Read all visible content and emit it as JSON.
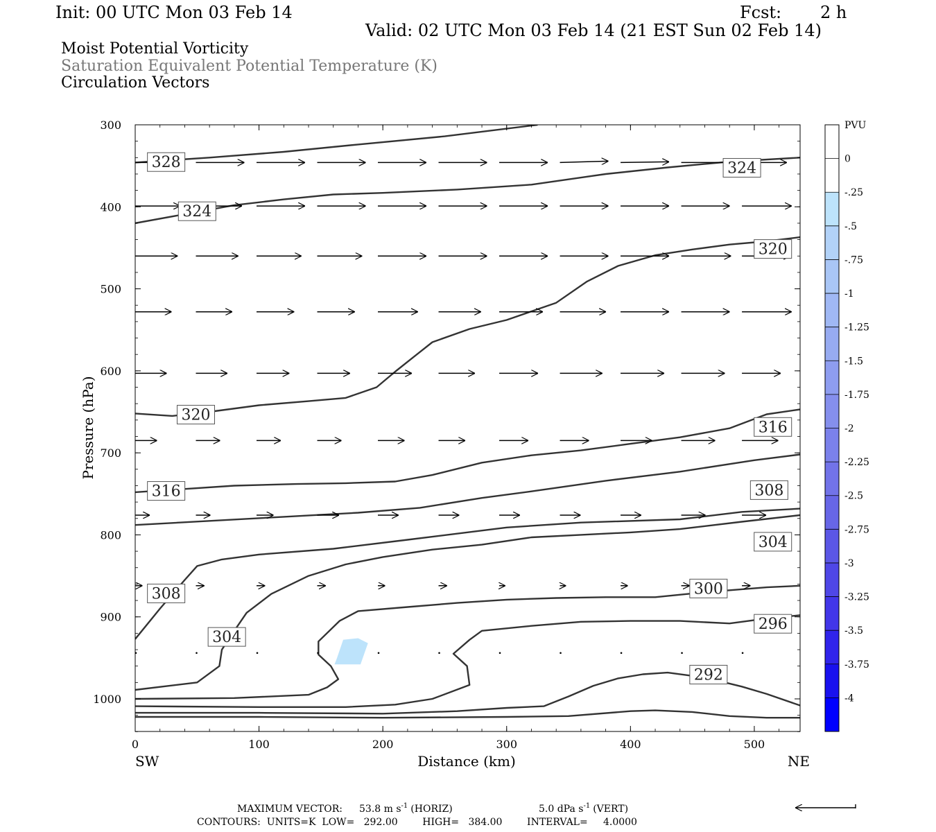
{
  "header": {
    "init": "Init: 00 UTC Mon 03 Feb 14",
    "fcst_label": "Fcst:",
    "fcst_value": "2 h",
    "valid": "Valid: 02 UTC Mon 03 Feb 14 (21 EST Sun 02 Feb 14)",
    "field1": "Moist Potential Vorticity",
    "field2": "Saturation Equivalent Potential Temperature (K)",
    "field3": "Circulation Vectors"
  },
  "colors": {
    "field2_text": "#777777",
    "contour": "#333333",
    "pv_fill": "#bde3fb"
  },
  "chart_data": {
    "type": "cross-section",
    "xlabel": "Distance (km)",
    "ylabel": "Pressure (hPa)",
    "xlim": [
      0,
      537
    ],
    "ylim": [
      1040,
      300
    ],
    "x_ticks": [
      "0",
      "100",
      "200",
      "300",
      "400",
      "500"
    ],
    "y_ticks": [
      "300",
      "400",
      "500",
      "600",
      "700",
      "800",
      "900",
      "1000"
    ],
    "left_end": "SW",
    "right_end": "NE",
    "contours": [
      {
        "level": "328",
        "points": [
          [
            0,
            346
          ],
          [
            60,
            340
          ],
          [
            120,
            333
          ],
          [
            180,
            324
          ],
          [
            250,
            314
          ],
          [
            325,
            300
          ]
        ]
      },
      {
        "level": "324",
        "points": [
          [
            0,
            420
          ],
          [
            40,
            409
          ],
          [
            80,
            398
          ],
          [
            120,
            391
          ],
          [
            160,
            385
          ],
          [
            200,
            383
          ],
          [
            260,
            379
          ],
          [
            320,
            373
          ],
          [
            380,
            360
          ],
          [
            430,
            352
          ],
          [
            480,
            345
          ],
          [
            537,
            340
          ]
        ]
      },
      {
        "level": "320",
        "points": [
          [
            0,
            652
          ],
          [
            30,
            655
          ],
          [
            60,
            650
          ],
          [
            100,
            642
          ],
          [
            140,
            637
          ],
          [
            170,
            633
          ],
          [
            195,
            620
          ],
          [
            210,
            601
          ],
          [
            225,
            583
          ],
          [
            240,
            565
          ],
          [
            270,
            549
          ],
          [
            300,
            538
          ],
          [
            340,
            517
          ],
          [
            365,
            491
          ],
          [
            390,
            472
          ],
          [
            420,
            459
          ],
          [
            450,
            452
          ],
          [
            480,
            446
          ],
          [
            510,
            442
          ],
          [
            537,
            437
          ]
        ]
      },
      {
        "level": "316",
        "points": [
          [
            0,
            748
          ],
          [
            80,
            740
          ],
          [
            130,
            738
          ],
          [
            170,
            737
          ],
          [
            210,
            735
          ],
          [
            240,
            727
          ],
          [
            280,
            712
          ],
          [
            320,
            703
          ],
          [
            360,
            697
          ],
          [
            400,
            689
          ],
          [
            440,
            681
          ],
          [
            480,
            670
          ],
          [
            510,
            653
          ],
          [
            537,
            647
          ]
        ]
      },
      {
        "level": "308",
        "points": [
          [
            0,
            788
          ],
          [
            60,
            783
          ],
          [
            120,
            778
          ],
          [
            180,
            773
          ],
          [
            230,
            767
          ],
          [
            280,
            755
          ],
          [
            320,
            747
          ],
          [
            380,
            734
          ],
          [
            440,
            723
          ],
          [
            500,
            709
          ],
          [
            537,
            702
          ]
        ]
      },
      {
        "level": "308",
        "points": [
          [
            0,
            927
          ],
          [
            20,
            890
          ],
          [
            40,
            855
          ],
          [
            50,
            838
          ],
          [
            70,
            830
          ],
          [
            100,
            824
          ],
          [
            160,
            817
          ],
          [
            220,
            806
          ],
          [
            300,
            791
          ],
          [
            360,
            785
          ],
          [
            440,
            781
          ],
          [
            490,
            772
          ],
          [
            537,
            768
          ]
        ]
      },
      {
        "level": "304",
        "points": [
          [
            0,
            989
          ],
          [
            50,
            980
          ],
          [
            68,
            960
          ],
          [
            70,
            940
          ],
          [
            80,
            917
          ],
          [
            90,
            895
          ],
          [
            110,
            872
          ],
          [
            140,
            850
          ],
          [
            170,
            836
          ],
          [
            200,
            827
          ],
          [
            240,
            818
          ],
          [
            280,
            812
          ],
          [
            320,
            803
          ],
          [
            360,
            800
          ],
          [
            400,
            797
          ],
          [
            440,
            793
          ],
          [
            490,
            784
          ],
          [
            537,
            776
          ]
        ]
      },
      {
        "level": "300",
        "points": [
          [
            0,
            1000
          ],
          [
            80,
            999
          ],
          [
            140,
            995
          ],
          [
            155,
            986
          ],
          [
            164,
            976
          ],
          [
            158,
            960
          ],
          [
            148,
            946
          ],
          [
            148,
            930
          ],
          [
            165,
            905
          ],
          [
            180,
            893
          ],
          [
            220,
            888
          ],
          [
            260,
            883
          ],
          [
            300,
            879
          ],
          [
            340,
            877
          ],
          [
            380,
            876
          ],
          [
            420,
            876
          ],
          [
            460,
            870
          ],
          [
            510,
            864
          ],
          [
            537,
            862
          ]
        ]
      },
      {
        "level": "296",
        "points": [
          [
            0,
            1009
          ],
          [
            100,
            1010
          ],
          [
            170,
            1010
          ],
          [
            210,
            1007
          ],
          [
            240,
            1000
          ],
          [
            270,
            983
          ],
          [
            268,
            960
          ],
          [
            257,
            945
          ],
          [
            270,
            928
          ],
          [
            280,
            917
          ],
          [
            320,
            911
          ],
          [
            360,
            906
          ],
          [
            400,
            905
          ],
          [
            440,
            905
          ],
          [
            480,
            908
          ],
          [
            510,
            902
          ],
          [
            537,
            898
          ]
        ]
      },
      {
        "level": "292",
        "points": [
          [
            0,
            1017
          ],
          [
            100,
            1017
          ],
          [
            200,
            1018
          ],
          [
            260,
            1015
          ],
          [
            300,
            1011
          ],
          [
            330,
            1009
          ],
          [
            350,
            997
          ],
          [
            370,
            984
          ],
          [
            390,
            975
          ],
          [
            410,
            970
          ],
          [
            430,
            968
          ],
          [
            460,
            974
          ],
          [
            490,
            985
          ],
          [
            510,
            994
          ],
          [
            537,
            1008
          ]
        ]
      },
      {
        "level": "",
        "points": [
          [
            0,
            1022
          ],
          [
            100,
            1022
          ],
          [
            200,
            1023
          ],
          [
            300,
            1022
          ],
          [
            350,
            1021
          ],
          [
            400,
            1015
          ],
          [
            420,
            1014
          ],
          [
            450,
            1016
          ],
          [
            480,
            1021
          ],
          [
            510,
            1023
          ],
          [
            537,
            1023
          ]
        ]
      }
    ],
    "contour_labels": [
      {
        "text": "328",
        "x": 25,
        "p": 345
      },
      {
        "text": "324",
        "x": 490,
        "p": 352
      },
      {
        "text": "324",
        "x": 50,
        "p": 405
      },
      {
        "text": "320",
        "x": 515,
        "p": 451
      },
      {
        "text": "320",
        "x": 49,
        "p": 653
      },
      {
        "text": "316",
        "x": 515,
        "p": 668
      },
      {
        "text": "316",
        "x": 25,
        "p": 746
      },
      {
        "text": "308",
        "x": 512,
        "p": 745
      },
      {
        "text": "304",
        "x": 515,
        "p": 808
      },
      {
        "text": "300",
        "x": 463,
        "p": 865
      },
      {
        "text": "308",
        "x": 25,
        "p": 871
      },
      {
        "text": "296",
        "x": 515,
        "p": 908
      },
      {
        "text": "304",
        "x": 74,
        "p": 924
      },
      {
        "text": "292",
        "x": 463,
        "p": 970
      }
    ],
    "pv_regions": [
      {
        "level": "-0.25 to -0.5",
        "points": [
          [
            163,
            950
          ],
          [
            168,
            928
          ],
          [
            180,
            926
          ],
          [
            188,
            932
          ],
          [
            182,
            958
          ],
          [
            161,
            958
          ]
        ]
      }
    ],
    "vector_rows": [
      {
        "p": 346,
        "x_start": [
          0,
          49,
          98,
          147,
          196,
          245,
          294,
          343,
          392,
          441,
          490
        ],
        "dx": [
          40,
          40,
          40,
          40,
          40,
          40,
          40,
          40,
          40,
          40,
          37
        ],
        "dp": [
          0,
          0,
          0,
          0,
          0,
          0,
          0,
          -2,
          -1,
          0,
          0
        ]
      },
      {
        "p": 399,
        "x_start": [
          0,
          49,
          98,
          147,
          196,
          245,
          294,
          343,
          392,
          441,
          490
        ],
        "dx": [
          37,
          38,
          40,
          40,
          40,
          40,
          40,
          40,
          40,
          40,
          41
        ],
        "dp": [
          0,
          0,
          0,
          0,
          0,
          0,
          0,
          0,
          0,
          0,
          0
        ]
      },
      {
        "p": 460,
        "x_start": [
          0,
          49,
          98,
          147,
          196,
          245,
          294,
          343,
          392,
          441,
          490
        ],
        "dx": [
          35,
          35,
          37,
          37,
          40,
          40,
          40,
          40,
          40,
          41,
          40
        ],
        "dp": [
          0,
          0,
          0,
          0,
          0,
          0,
          0,
          0,
          0,
          0,
          0
        ]
      },
      {
        "p": 528,
        "x_start": [
          0,
          49,
          98,
          147,
          196,
          245,
          294,
          343,
          392,
          441,
          490
        ],
        "dx": [
          30,
          30,
          31,
          31,
          33,
          35,
          36,
          38,
          40,
          40,
          41
        ],
        "dp": [
          0,
          0,
          0,
          0,
          0,
          0,
          0,
          0,
          0,
          0,
          0
        ]
      },
      {
        "p": 603,
        "x_start": [
          0,
          49,
          98,
          147,
          196,
          245,
          294,
          343,
          392,
          441,
          490
        ],
        "dx": [
          26,
          26,
          27,
          27,
          28,
          30,
          32,
          35,
          36,
          36,
          32
        ],
        "dp": [
          0,
          0,
          0,
          0,
          0,
          0,
          0,
          0,
          0,
          0,
          0
        ]
      },
      {
        "p": 685,
        "x_start": [
          0,
          49,
          98,
          147,
          196,
          245,
          294,
          343,
          392,
          441,
          490
        ],
        "dx": [
          18,
          20,
          20,
          20,
          22,
          22,
          24,
          24,
          26,
          28,
          30
        ],
        "dp": [
          0,
          0,
          0,
          0,
          0,
          0,
          0,
          0,
          0,
          0,
          0
        ]
      },
      {
        "p": 776,
        "x_start": [
          0,
          49,
          98,
          147,
          196,
          245,
          294,
          343,
          392,
          441,
          490
        ],
        "dx": [
          12,
          12,
          14,
          18,
          17,
          17,
          17,
          17,
          17,
          20,
          20
        ],
        "dp": [
          0,
          0,
          0,
          0,
          0,
          0,
          0,
          0,
          0,
          0,
          0
        ]
      },
      {
        "p": 862,
        "x_start": [
          0,
          49,
          98,
          147,
          196,
          245,
          294,
          343,
          392,
          441,
          490
        ],
        "dx": [
          6,
          7,
          7,
          7,
          6,
          7,
          5,
          5,
          6,
          7,
          7
        ],
        "dp": [
          0,
          0,
          0,
          0,
          0,
          0,
          0,
          0,
          0,
          0,
          0
        ]
      },
      {
        "p": 944,
        "x_start": [
          0,
          49,
          98,
          147,
          196,
          245,
          294,
          343,
          392,
          441,
          490
        ],
        "dx": [
          1,
          0,
          0,
          0,
          0,
          0,
          0,
          0,
          0,
          0,
          0
        ],
        "dp": [
          0,
          0,
          0,
          0,
          0,
          0,
          0,
          0,
          0,
          0,
          0
        ]
      }
    ],
    "colorbar": {
      "unit": "PVU",
      "labels": [
        "0",
        "-.25",
        "-.5",
        "-.75",
        "-1",
        "-1.25",
        "-1.5",
        "-1.75",
        "-2",
        "-2.25",
        "-2.5",
        "-2.75",
        "-3",
        "-3.25",
        "-3.5",
        "-3.75",
        "-4"
      ],
      "colors": [
        "#ffffff",
        "#ffffff",
        "#bde3fb",
        "#b2d2f8",
        "#a9c6f6",
        "#a0b8f4",
        "#97abf1",
        "#8e9df0",
        "#858fed",
        "#7b81eb",
        "#7273e9",
        "#6766e7",
        "#5b57e6",
        "#4f47e7",
        "#4236e9",
        "#3024eb",
        "#1911ef",
        "#0000ff"
      ]
    }
  },
  "footer": {
    "max_vector_label": "MAXIMUM VECTOR:",
    "horiz_value": "53.8 m s",
    "horiz_unit_exp": "-1",
    "horiz_tag": "(HORIZ)",
    "vert_value": "5.0 dPa s",
    "vert_unit_exp": "-1",
    "vert_tag": "(VERT)",
    "contours_line": "CONTOURS:  UNITS=K  LOW=   292.00        HIGH=   384.00        INTERVAL=     4.0000"
  }
}
